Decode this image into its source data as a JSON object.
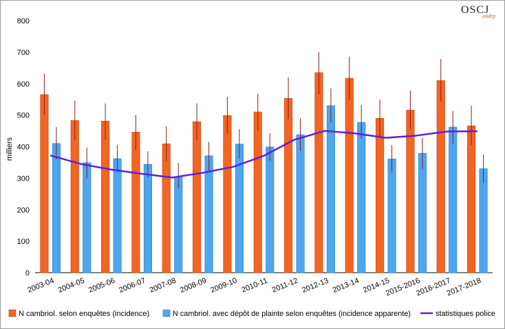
{
  "logo": {
    "text": "OSCJ",
    "sub": "ondrp"
  },
  "colors": {
    "bar_incidence": "#f26522",
    "bar_incidence_stroke": "#b84a12",
    "bar_apparente": "#4da6ee",
    "bar_apparente_stroke": "#2a7dc4",
    "line_police": "#5b1ee0",
    "error_bar": "#8b1a1a",
    "axis": "#000000"
  },
  "chart_data": {
    "type": "bar",
    "ylabel": "milliers",
    "ylim": [
      0,
      800
    ],
    "yticks": [
      0,
      100,
      200,
      300,
      400,
      500,
      600,
      700,
      800
    ],
    "categories": [
      "2003-04",
      "2004-05",
      "2005-06",
      "2006-07",
      "2007-08",
      "2008-09",
      "2009-10",
      "2010-11",
      "2011-12",
      "2012-13",
      "2013-14",
      "2014-15",
      "2015-2016",
      "2016-2017",
      "2017-2018"
    ],
    "series": [
      {
        "name": "N cambriol. selon enquêtes (incidence)",
        "kind": "bar",
        "values": [
          565,
          483,
          481,
          446,
          409,
          479,
          499,
          510,
          553,
          635,
          617,
          490,
          516,
          610,
          466
        ],
        "err_low": [
          500,
          420,
          423,
          390,
          355,
          423,
          440,
          452,
          487,
          567,
          548,
          430,
          456,
          543,
          405
        ],
        "err_high": [
          632,
          546,
          537,
          500,
          465,
          537,
          558,
          568,
          620,
          700,
          686,
          550,
          578,
          678,
          530
        ]
      },
      {
        "name": "N cambriol. avec dépôt de plainte selon enquêtes (incidence apparente)",
        "kind": "bar",
        "values": [
          410,
          349,
          362,
          344,
          303,
          371,
          408,
          399,
          438,
          530,
          477,
          361,
          379,
          462,
          330
        ],
        "err_low": [
          360,
          300,
          320,
          302,
          267,
          325,
          362,
          355,
          387,
          475,
          425,
          318,
          330,
          410,
          285
        ],
        "err_high": [
          462,
          397,
          405,
          385,
          348,
          415,
          455,
          442,
          490,
          585,
          532,
          405,
          428,
          513,
          375
        ]
      },
      {
        "name": "statistiques police",
        "kind": "line",
        "values": [
          372,
          345,
          327,
          314,
          302,
          317,
          336,
          371,
          422,
          450,
          442,
          428,
          435,
          448,
          449
        ]
      }
    ],
    "legend_position": "bottom",
    "grid": false
  }
}
